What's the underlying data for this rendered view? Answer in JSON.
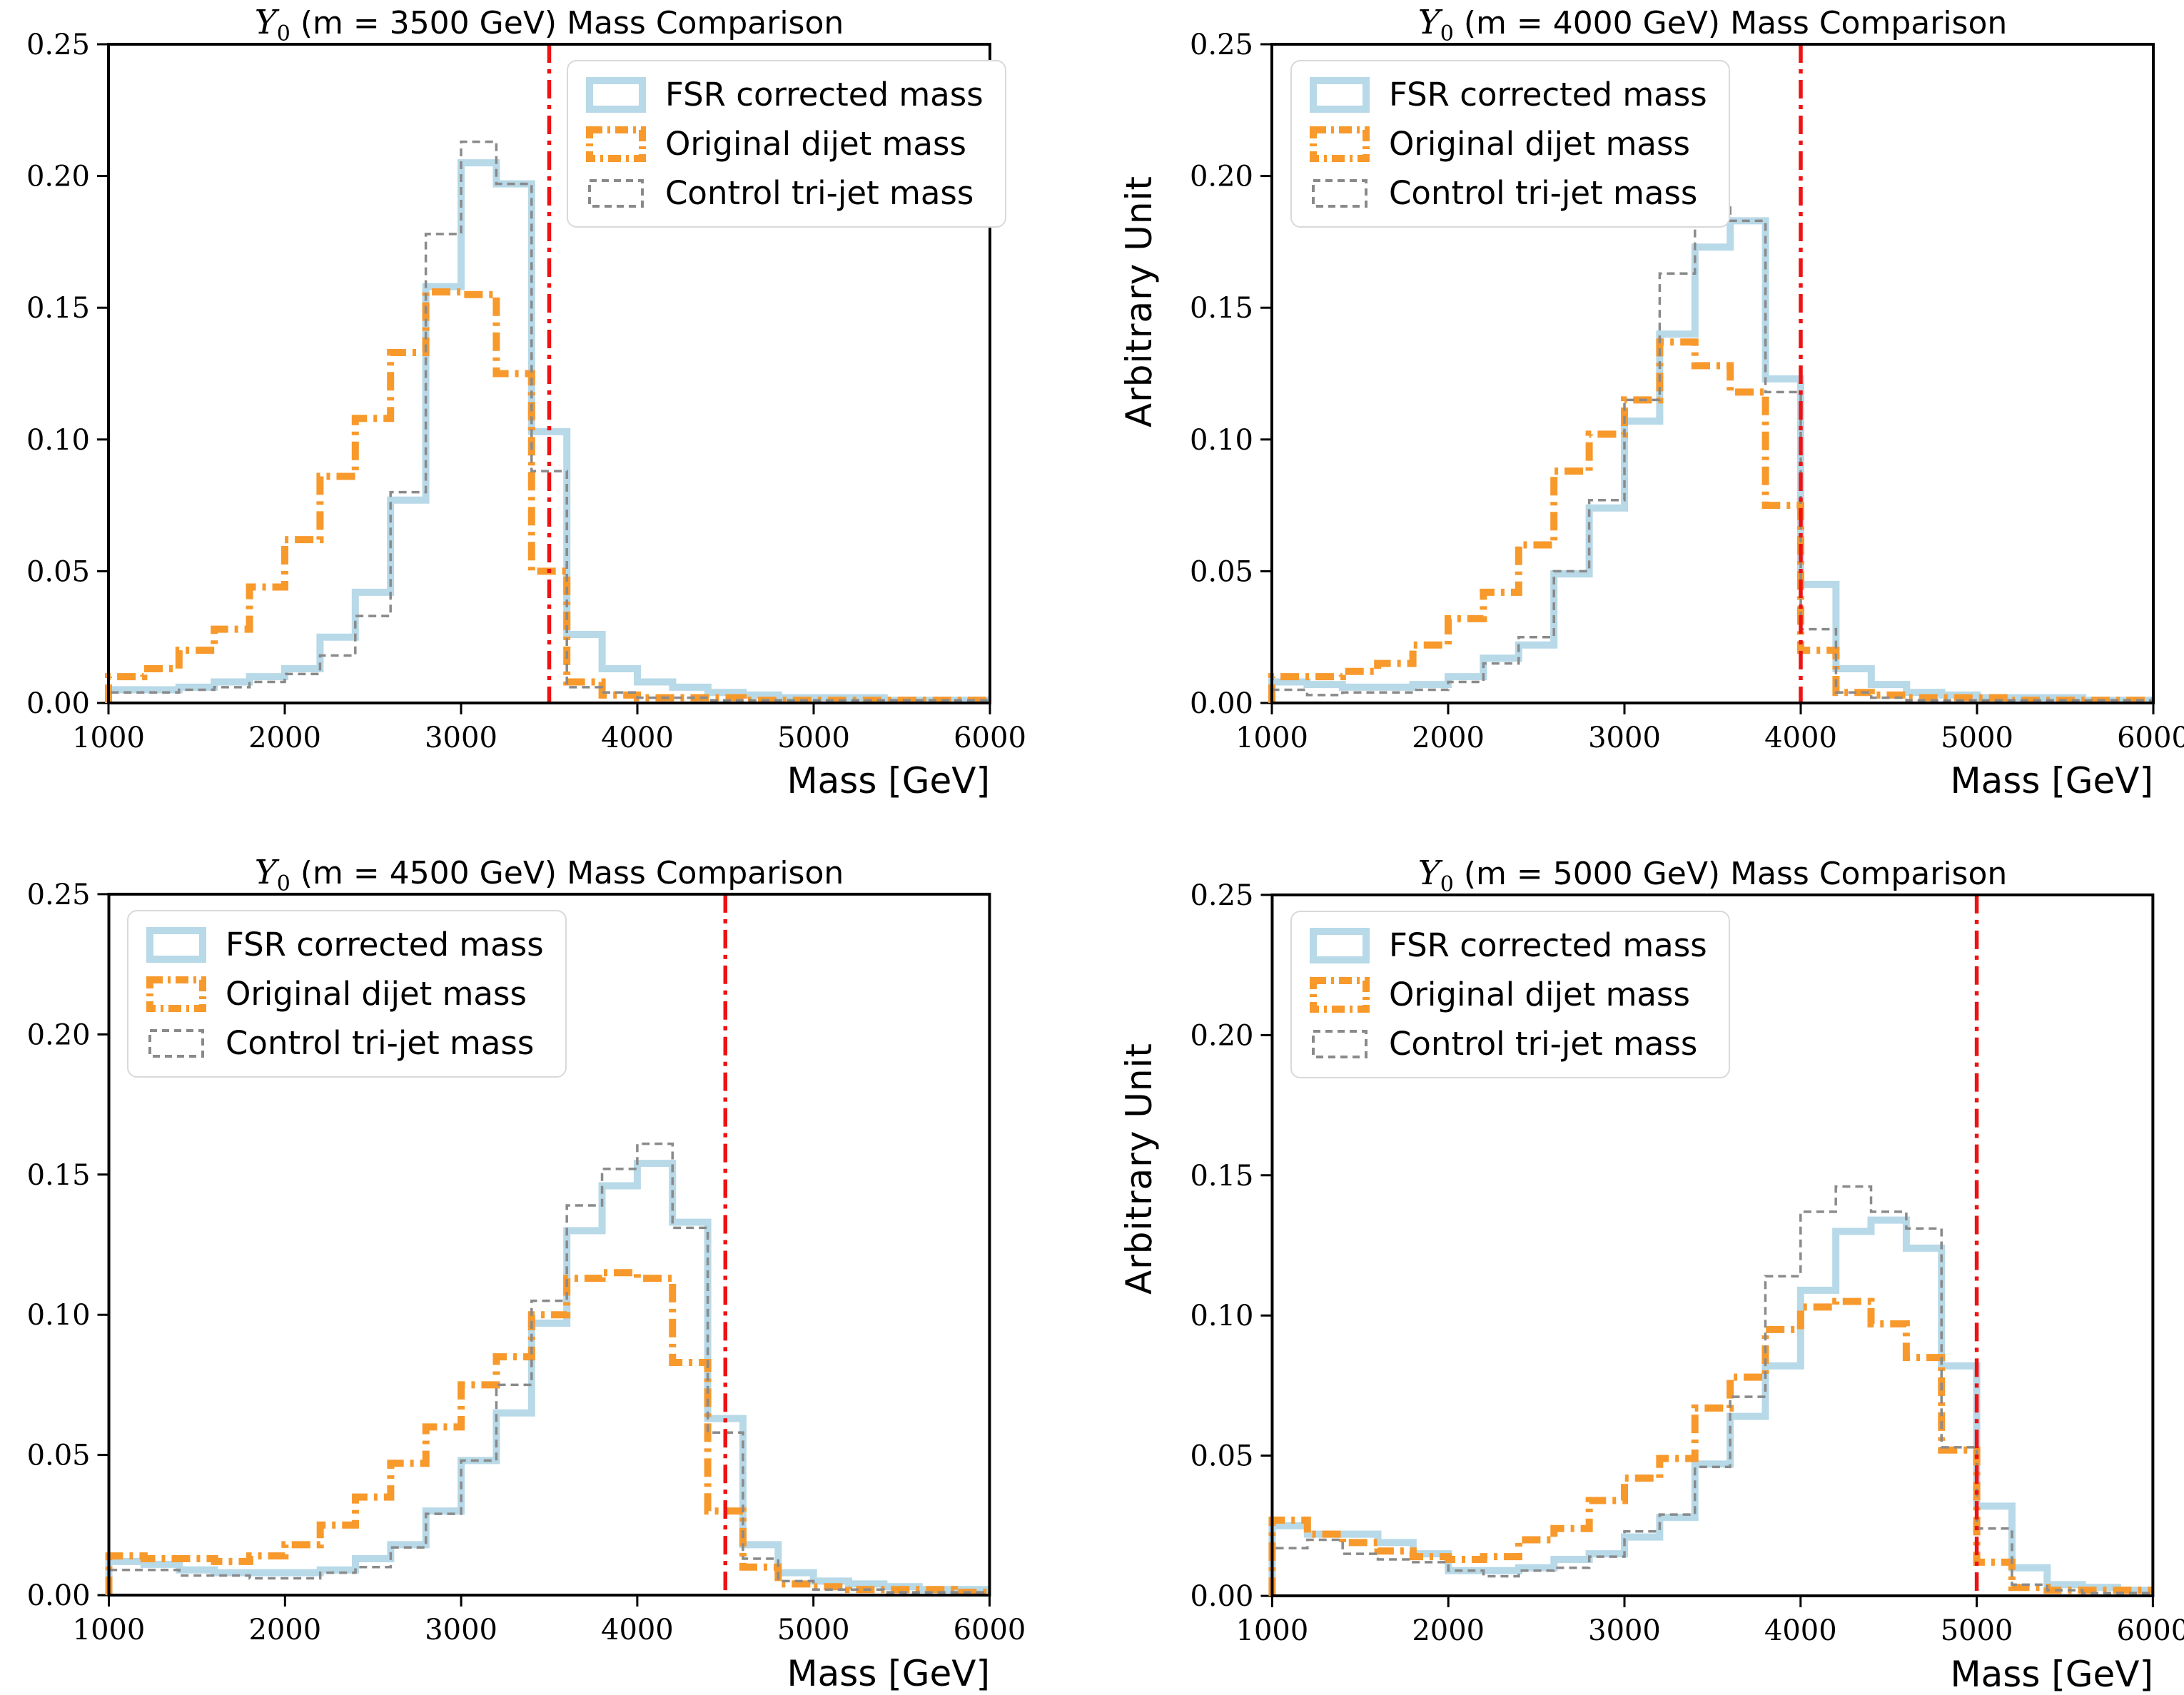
{
  "figure": {
    "background": "#ffffff",
    "ylabel": "Arbitrary Unit",
    "xlabel": "Mass [GeV]",
    "yticks": [
      "0.00",
      "0.05",
      "0.10",
      "0.15",
      "0.20",
      "0.25"
    ],
    "ytick_values": [
      0,
      0.05,
      0.1,
      0.15,
      0.2,
      0.25
    ],
    "xticks": [
      "1000",
      "2000",
      "3000",
      "4000",
      "5000",
      "6000"
    ],
    "xtick_values": [
      1000,
      2000,
      3000,
      4000,
      5000,
      6000
    ]
  },
  "colors": {
    "fsr": "#b7d9e8",
    "dijet": "#f8992c",
    "trijet": "#8a8a8a",
    "vline": "#ef1212",
    "frame": "#000000"
  },
  "legend": {
    "items": [
      {
        "key": "fsr",
        "label": "FSR corrected mass"
      },
      {
        "key": "dijet",
        "label": "Original dijet mass"
      },
      {
        "key": "trijet",
        "label": "Control tri-jet mass"
      }
    ]
  },
  "chart_data": [
    {
      "type": "histogram",
      "title": {
        "symbol": "Y",
        "subscript": "0",
        "rest": " (m = 3500 GeV) Mass Comparison"
      },
      "mass_gev": 3500,
      "xlim": [
        1000,
        6000
      ],
      "ylim": [
        0,
        0.25
      ],
      "bin_start": 1000,
      "bin_width": 200,
      "vline_x": 3500,
      "legend_position": "upper-right",
      "series": [
        {
          "name": "FSR corrected mass",
          "key": "fsr",
          "values": [
            0.005,
            0.005,
            0.006,
            0.008,
            0.01,
            0.013,
            0.025,
            0.042,
            0.077,
            0.158,
            0.205,
            0.197,
            0.103,
            0.026,
            0.013,
            0.008,
            0.006,
            0.004,
            0.003,
            0.002,
            0.002,
            0.002,
            0.001,
            0.001,
            0.001
          ]
        },
        {
          "name": "Original dijet mass",
          "key": "dijet",
          "values": [
            0.01,
            0.013,
            0.02,
            0.028,
            0.044,
            0.062,
            0.086,
            0.108,
            0.133,
            0.156,
            0.155,
            0.125,
            0.05,
            0.008,
            0.003,
            0.002,
            0.002,
            0.002,
            0.001,
            0.001,
            0.001,
            0.001,
            0.001,
            0.001,
            0.001
          ]
        },
        {
          "name": "Control tri-jet mass",
          "key": "trijet",
          "values": [
            0.004,
            0.004,
            0.005,
            0.006,
            0.008,
            0.011,
            0.018,
            0.033,
            0.08,
            0.178,
            0.213,
            0.197,
            0.088,
            0.006,
            0.004,
            0.002,
            0.002,
            0.001,
            0.001,
            0.001,
            0.001,
            0.001,
            0.001,
            0.001,
            0.001
          ]
        }
      ]
    },
    {
      "type": "histogram",
      "title": {
        "symbol": "Y",
        "subscript": "0",
        "rest": " (m = 4000 GeV) Mass Comparison"
      },
      "mass_gev": 4000,
      "xlim": [
        1000,
        6000
      ],
      "ylim": [
        0,
        0.25
      ],
      "bin_start": 1000,
      "bin_width": 200,
      "vline_x": 4000,
      "legend_position": "upper-left",
      "series": [
        {
          "name": "FSR corrected mass",
          "key": "fsr",
          "values": [
            0.008,
            0.007,
            0.006,
            0.006,
            0.007,
            0.01,
            0.017,
            0.022,
            0.049,
            0.074,
            0.107,
            0.14,
            0.173,
            0.183,
            0.123,
            0.045,
            0.013,
            0.007,
            0.004,
            0.003,
            0.002,
            0.002,
            0.002,
            0.001,
            0.001
          ]
        },
        {
          "name": "Original dijet mass",
          "key": "dijet",
          "values": [
            0.01,
            0.01,
            0.012,
            0.015,
            0.022,
            0.032,
            0.042,
            0.06,
            0.088,
            0.102,
            0.115,
            0.137,
            0.128,
            0.118,
            0.075,
            0.02,
            0.004,
            0.003,
            0.002,
            0.002,
            0.002,
            0.001,
            0.001,
            0.001,
            0.001
          ]
        },
        {
          "name": "Control tri-jet mass",
          "key": "trijet",
          "values": [
            0.005,
            0.003,
            0.004,
            0.004,
            0.005,
            0.008,
            0.015,
            0.025,
            0.05,
            0.077,
            0.115,
            0.163,
            0.188,
            0.183,
            0.118,
            0.028,
            0.004,
            0.002,
            0.001,
            0.001,
            0.001,
            0.001,
            0.001,
            0.001,
            0.001
          ]
        }
      ]
    },
    {
      "type": "histogram",
      "title": {
        "symbol": "Y",
        "subscript": "0",
        "rest": " (m = 4500 GeV) Mass Comparison"
      },
      "mass_gev": 4500,
      "xlim": [
        1000,
        6000
      ],
      "ylim": [
        0,
        0.25
      ],
      "bin_start": 1000,
      "bin_width": 200,
      "vline_x": 4500,
      "legend_position": "upper-left",
      "series": [
        {
          "name": "FSR corrected mass",
          "key": "fsr",
          "values": [
            0.012,
            0.011,
            0.009,
            0.008,
            0.008,
            0.008,
            0.009,
            0.013,
            0.018,
            0.03,
            0.048,
            0.065,
            0.097,
            0.13,
            0.146,
            0.154,
            0.133,
            0.063,
            0.018,
            0.008,
            0.005,
            0.004,
            0.003,
            0.002,
            0.002
          ]
        },
        {
          "name": "Original dijet mass",
          "key": "dijet",
          "values": [
            0.014,
            0.013,
            0.013,
            0.012,
            0.014,
            0.018,
            0.025,
            0.035,
            0.047,
            0.06,
            0.075,
            0.085,
            0.1,
            0.113,
            0.115,
            0.113,
            0.083,
            0.03,
            0.01,
            0.004,
            0.003,
            0.002,
            0.002,
            0.002,
            0.001
          ]
        },
        {
          "name": "Control tri-jet mass",
          "key": "trijet",
          "values": [
            0.009,
            0.009,
            0.007,
            0.007,
            0.006,
            0.006,
            0.008,
            0.01,
            0.017,
            0.029,
            0.048,
            0.075,
            0.105,
            0.139,
            0.152,
            0.161,
            0.131,
            0.058,
            0.013,
            0.005,
            0.002,
            0.002,
            0.001,
            0.001,
            0.001
          ]
        }
      ]
    },
    {
      "type": "histogram",
      "title": {
        "symbol": "Y",
        "subscript": "0",
        "rest": " (m = 5000 GeV) Mass Comparison"
      },
      "mass_gev": 5000,
      "xlim": [
        1000,
        6000
      ],
      "ylim": [
        0,
        0.25
      ],
      "bin_start": 1000,
      "bin_width": 200,
      "vline_x": 5000,
      "legend_position": "upper-left",
      "series": [
        {
          "name": "FSR corrected mass",
          "key": "fsr",
          "values": [
            0.025,
            0.022,
            0.022,
            0.019,
            0.015,
            0.009,
            0.009,
            0.01,
            0.013,
            0.015,
            0.021,
            0.028,
            0.047,
            0.064,
            0.082,
            0.109,
            0.13,
            0.134,
            0.124,
            0.082,
            0.032,
            0.01,
            0.004,
            0.003,
            0.002
          ]
        },
        {
          "name": "Original dijet mass",
          "key": "dijet",
          "values": [
            0.027,
            0.022,
            0.019,
            0.016,
            0.014,
            0.013,
            0.014,
            0.02,
            0.024,
            0.034,
            0.042,
            0.049,
            0.067,
            0.078,
            0.095,
            0.103,
            0.105,
            0.097,
            0.085,
            0.052,
            0.012,
            0.003,
            0.002,
            0.002,
            0.002
          ]
        },
        {
          "name": "Control tri-jet mass",
          "key": "trijet",
          "values": [
            0.017,
            0.02,
            0.015,
            0.013,
            0.012,
            0.009,
            0.007,
            0.009,
            0.01,
            0.014,
            0.023,
            0.029,
            0.046,
            0.071,
            0.114,
            0.137,
            0.146,
            0.137,
            0.131,
            0.053,
            0.024,
            0.004,
            0.002,
            0.001,
            0.001
          ]
        }
      ]
    }
  ]
}
